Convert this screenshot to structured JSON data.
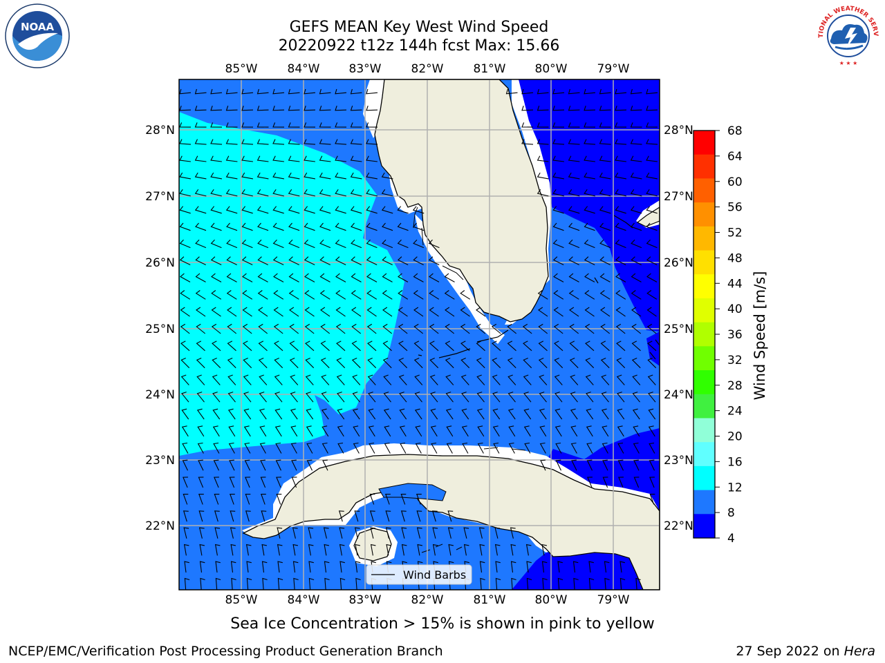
{
  "title": {
    "line1": "GEFS MEAN Key West Wind Speed",
    "line2": "20220922 t12z 144h fcst   Max: 15.66"
  },
  "map": {
    "lon_labels": [
      "85°W",
      "84°W",
      "83°W",
      "82°W",
      "81°W",
      "80°W",
      "79°W"
    ],
    "lat_labels": [
      "28°N",
      "27°N",
      "26°N",
      "25°N",
      "24°N",
      "23°N",
      "22°N"
    ],
    "legend_label": "Wind Barbs",
    "colors": {
      "land": "#efeedd",
      "speed_4_8": "#0000ff",
      "speed_8_12": "#1e78ff",
      "speed_12_16": "#00ffff",
      "gridline": "#b0b0b0"
    }
  },
  "colorbar": {
    "label": "Wind Speed [m/s]",
    "ticks": [
      "68",
      "64",
      "60",
      "56",
      "52",
      "48",
      "44",
      "40",
      "36",
      "32",
      "28",
      "24",
      "20",
      "16",
      "12",
      "8",
      "4"
    ],
    "colors": [
      "#ff0000",
      "#ff3000",
      "#ff6000",
      "#ff9000",
      "#ffb800",
      "#ffe000",
      "#ffff00",
      "#e0ff00",
      "#b0ff00",
      "#70ff00",
      "#30ff00",
      "#40f040",
      "#90ffd8",
      "#60ffff",
      "#00ffff",
      "#1e78ff",
      "#0000ff"
    ]
  },
  "logos": {
    "noaa_text": "NOAA",
    "nws_text": "NATIONAL WEATHER SERVICE"
  },
  "footer": {
    "ice_note": "Sea Ice Concentration > 15% is shown in pink to yellow",
    "left": "NCEP/EMC/Verification Post Processing Product Generation Branch",
    "right_date": "27 Sep 2022 on ",
    "right_machine": "Hera"
  }
}
